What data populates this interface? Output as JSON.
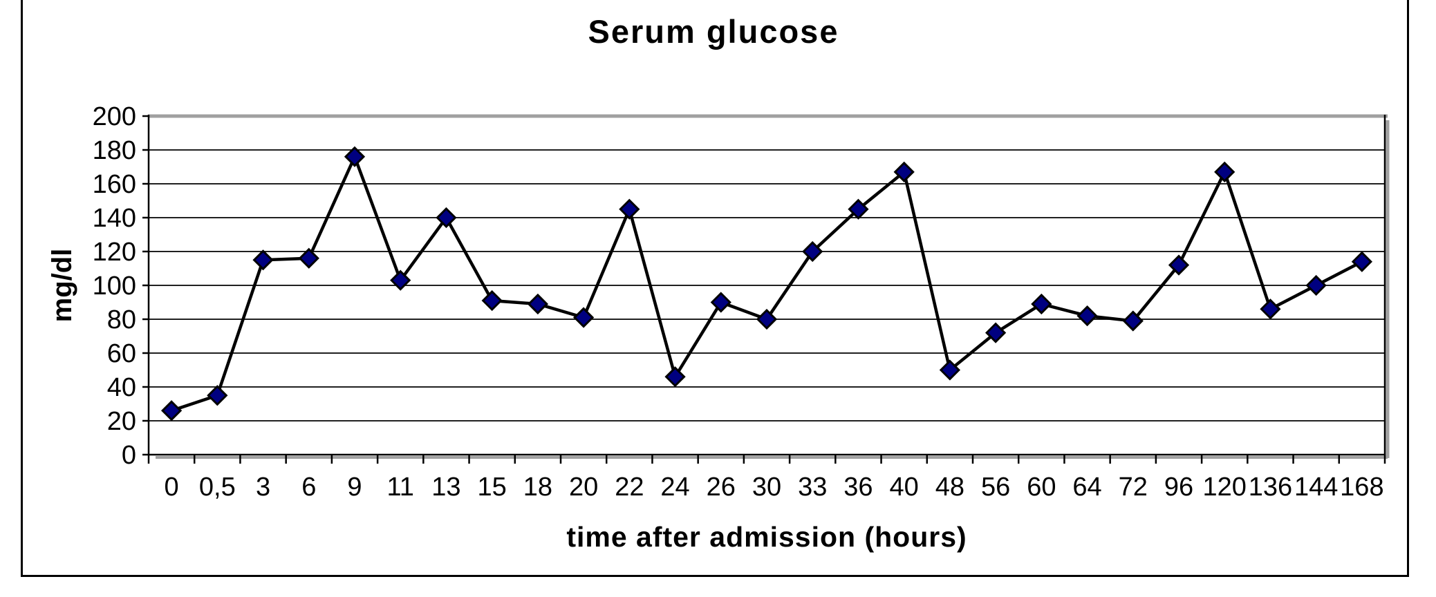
{
  "page": {
    "background": "#ffffff"
  },
  "chart_data": {
    "type": "line",
    "title": "Serum glucose",
    "xlabel": "time after admission (hours)",
    "ylabel": "mg/dl",
    "categories": [
      "0",
      "0,5",
      "3",
      "6",
      "9",
      "11",
      "13",
      "15",
      "18",
      "20",
      "22",
      "24",
      "26",
      "30",
      "33",
      "36",
      "40",
      "48",
      "56",
      "60",
      "64",
      "72",
      "96",
      "120",
      "136",
      "144",
      "168"
    ],
    "values": [
      26,
      35,
      115,
      116,
      176,
      103,
      140,
      91,
      89,
      81,
      145,
      46,
      90,
      80,
      120,
      145,
      167,
      50,
      72,
      89,
      82,
      79,
      112,
      167,
      86,
      100,
      114
    ],
    "ylim": [
      0,
      200
    ],
    "yticks": [
      0,
      20,
      40,
      60,
      80,
      100,
      120,
      140,
      160,
      180,
      200
    ],
    "grid": true,
    "legend": "none",
    "marker": "diamond",
    "colors": {
      "line": "#000000",
      "marker_fill": "#000080",
      "marker_stroke": "#000000",
      "grid": "#000000",
      "top_border": "#a0a0a0",
      "shadow": "#a0a0a0",
      "text": "#000000"
    }
  }
}
